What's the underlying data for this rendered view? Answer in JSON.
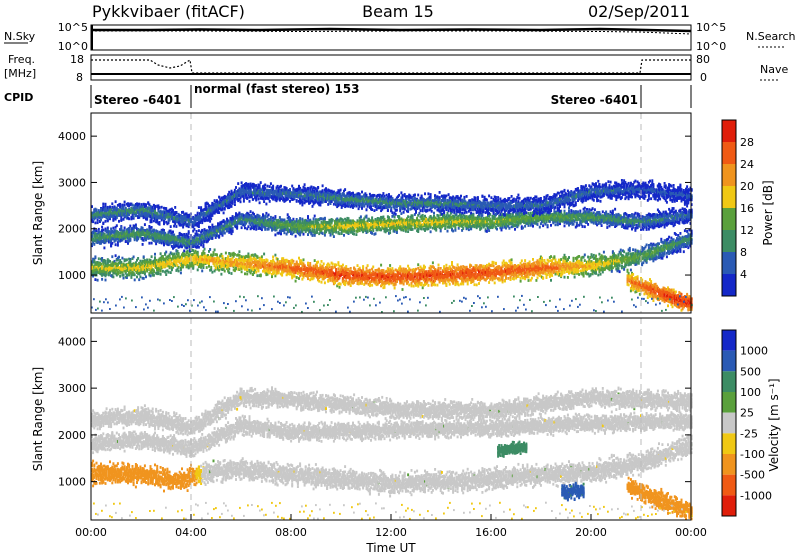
{
  "header": {
    "radar": "Pykkvibaer (fitACF)",
    "beam": "Beam 15",
    "date": "02/Sep/2011"
  },
  "noise_panel": {
    "left_label": "N.Sky",
    "left_top_tick": "10^5",
    "left_bottom_tick": "10^0",
    "right_top_tick": "10^5",
    "right_bottom_tick": "10^0",
    "right_label": "N.Search"
  },
  "freq_panel": {
    "left_label_1": "Freq.",
    "left_label_2": "[MHz]",
    "left_top_tick": "18",
    "left_bottom_tick": "8",
    "right_top_tick": "80",
    "right_bottom_tick": "0",
    "right_label": "Nave"
  },
  "cpid_panel": {
    "label": "CPID",
    "segments": [
      {
        "text": "Stereo -6401"
      },
      {
        "text": "normal (fast stereo) 153"
      },
      {
        "text": "Stereo -6401"
      }
    ]
  },
  "colors": {
    "power": [
      "#1428c8",
      "#2a5ab4",
      "#3c8c64",
      "#5aa03c",
      "#f0c814",
      "#f0941e",
      "#f05a14",
      "#e01e0a"
    ],
    "velocity": [
      "#1428c8",
      "#2a5ab4",
      "#3c8c64",
      "#5aa03c",
      "#c8c8c8",
      "#f0c814",
      "#f0941e",
      "#f05a14",
      "#e01e0a"
    ]
  },
  "chart_data": [
    {
      "type": "heatmap",
      "name": "power",
      "ylabel": "Slant Range [km]",
      "yticks": [
        1000,
        2000,
        3000,
        4000
      ],
      "ylim": [
        180,
        4500
      ],
      "xlim": [
        0,
        24
      ],
      "colorbar": {
        "label": "Power [dB]",
        "range": [
          0,
          32
        ],
        "ticks": [
          "4",
          "8",
          "12",
          "16",
          "20",
          "24",
          "28"
        ]
      },
      "bands": [
        {
          "name": "near",
          "points": [
            [
              0,
              1150,
              16
            ],
            [
              2,
              1150,
              18
            ],
            [
              4,
              1350,
              20
            ],
            [
              6,
              1250,
              22
            ],
            [
              8,
              1150,
              26
            ],
            [
              10,
              1000,
              28
            ],
            [
              12,
              950,
              28
            ],
            [
              14,
              1000,
              28
            ],
            [
              16,
              1050,
              28
            ],
            [
              18,
              1150,
              26
            ],
            [
              20,
              1200,
              20
            ],
            [
              22,
              1400,
              14
            ],
            [
              24,
              1800,
              10
            ]
          ],
          "width": 300
        },
        {
          "name": "middle",
          "points": [
            [
              0,
              1800,
              12
            ],
            [
              2,
              1900,
              12
            ],
            [
              4,
              1700,
              10
            ],
            [
              6,
              2200,
              10
            ],
            [
              8,
              2050,
              14
            ],
            [
              10,
              2050,
              18
            ],
            [
              12,
              2100,
              18
            ],
            [
              14,
              2150,
              18
            ],
            [
              16,
              2150,
              16
            ],
            [
              18,
              2250,
              14
            ],
            [
              20,
              2250,
              12
            ],
            [
              22,
              2150,
              10
            ],
            [
              24,
              2300,
              8
            ]
          ],
          "width": 250
        },
        {
          "name": "far",
          "points": [
            [
              0,
              2300,
              10
            ],
            [
              2,
              2400,
              10
            ],
            [
              4,
              2150,
              8
            ],
            [
              6,
              2800,
              8
            ],
            [
              8,
              2750,
              8
            ],
            [
              10,
              2650,
              10
            ],
            [
              12,
              2550,
              10
            ],
            [
              14,
              2550,
              10
            ],
            [
              16,
              2500,
              8
            ],
            [
              18,
              2500,
              8
            ],
            [
              20,
              2800,
              8
            ],
            [
              22,
              2850,
              6
            ],
            [
              24,
              2700,
              6
            ]
          ],
          "width": 260
        },
        {
          "name": "evening",
          "points": [
            [
              21.4,
              900,
              24
            ],
            [
              22.5,
              650,
              28
            ],
            [
              23.5,
              450,
              30
            ],
            [
              24,
              380,
              30
            ]
          ],
          "width": 260
        }
      ]
    },
    {
      "type": "heatmap",
      "name": "velocity",
      "ylabel": "Slant Range [km]",
      "yticks": [
        1000,
        2000,
        3000,
        4000
      ],
      "ylim": [
        180,
        4500
      ],
      "xlim": [
        0,
        24
      ],
      "xticks": [
        "00:00",
        "04:00",
        "08:00",
        "12:00",
        "16:00",
        "20:00",
        "00:00"
      ],
      "xlabel": "Time UT",
      "colorbar": {
        "label": "Velocity [m s⁻¹]",
        "ticks": [
          "1000",
          "500",
          "100",
          "25",
          "-25",
          "-100",
          "-500",
          "-1000"
        ]
      },
      "bands": [
        {
          "name": "near",
          "points": [
            [
              0,
              1200,
              -300
            ],
            [
              2,
              1150,
              -200
            ],
            [
              3.5,
              1000,
              -300
            ],
            [
              4.5,
              1200,
              0
            ],
            [
              6,
              1250,
              0
            ],
            [
              8,
              1150,
              0
            ],
            [
              12,
              950,
              0
            ],
            [
              16,
              1050,
              0
            ],
            [
              18,
              1150,
              0
            ],
            [
              20,
              1200,
              0
            ],
            [
              22,
              1400,
              0
            ],
            [
              24,
              1800,
              0
            ]
          ],
          "width": 300
        },
        {
          "name": "middle",
          "points": [
            [
              0,
              1800,
              0
            ],
            [
              2,
              1900,
              0
            ],
            [
              4,
              1700,
              0
            ],
            [
              6,
              2200,
              0
            ],
            [
              8,
              2050,
              0
            ],
            [
              12,
              2100,
              0
            ],
            [
              16,
              2150,
              0
            ],
            [
              20,
              2250,
              0
            ],
            [
              24,
              2300,
              0
            ]
          ],
          "width": 250
        },
        {
          "name": "far",
          "points": [
            [
              0,
              2300,
              0
            ],
            [
              2,
              2400,
              0
            ],
            [
              4,
              2150,
              0
            ],
            [
              6,
              2800,
              0
            ],
            [
              8,
              2750,
              0
            ],
            [
              12,
              2550,
              0
            ],
            [
              16,
              2500,
              0
            ],
            [
              20,
              2800,
              0
            ],
            [
              24,
              2700,
              0
            ]
          ],
          "width": 260
        },
        {
          "name": "patch_green",
          "points": [
            [
              16.2,
              1650,
              300
            ],
            [
              17.4,
              1750,
              300
            ]
          ],
          "width": 160
        },
        {
          "name": "patch_teal",
          "points": [
            [
              18.8,
              750,
              600
            ],
            [
              19.7,
              820,
              600
            ]
          ],
          "width": 220
        },
        {
          "name": "evening",
          "points": [
            [
              21.4,
              900,
              -200
            ],
            [
              22.5,
              650,
              -400
            ],
            [
              23.5,
              450,
              -350
            ],
            [
              24,
              380,
              -300
            ]
          ],
          "width": 260
        }
      ]
    }
  ]
}
